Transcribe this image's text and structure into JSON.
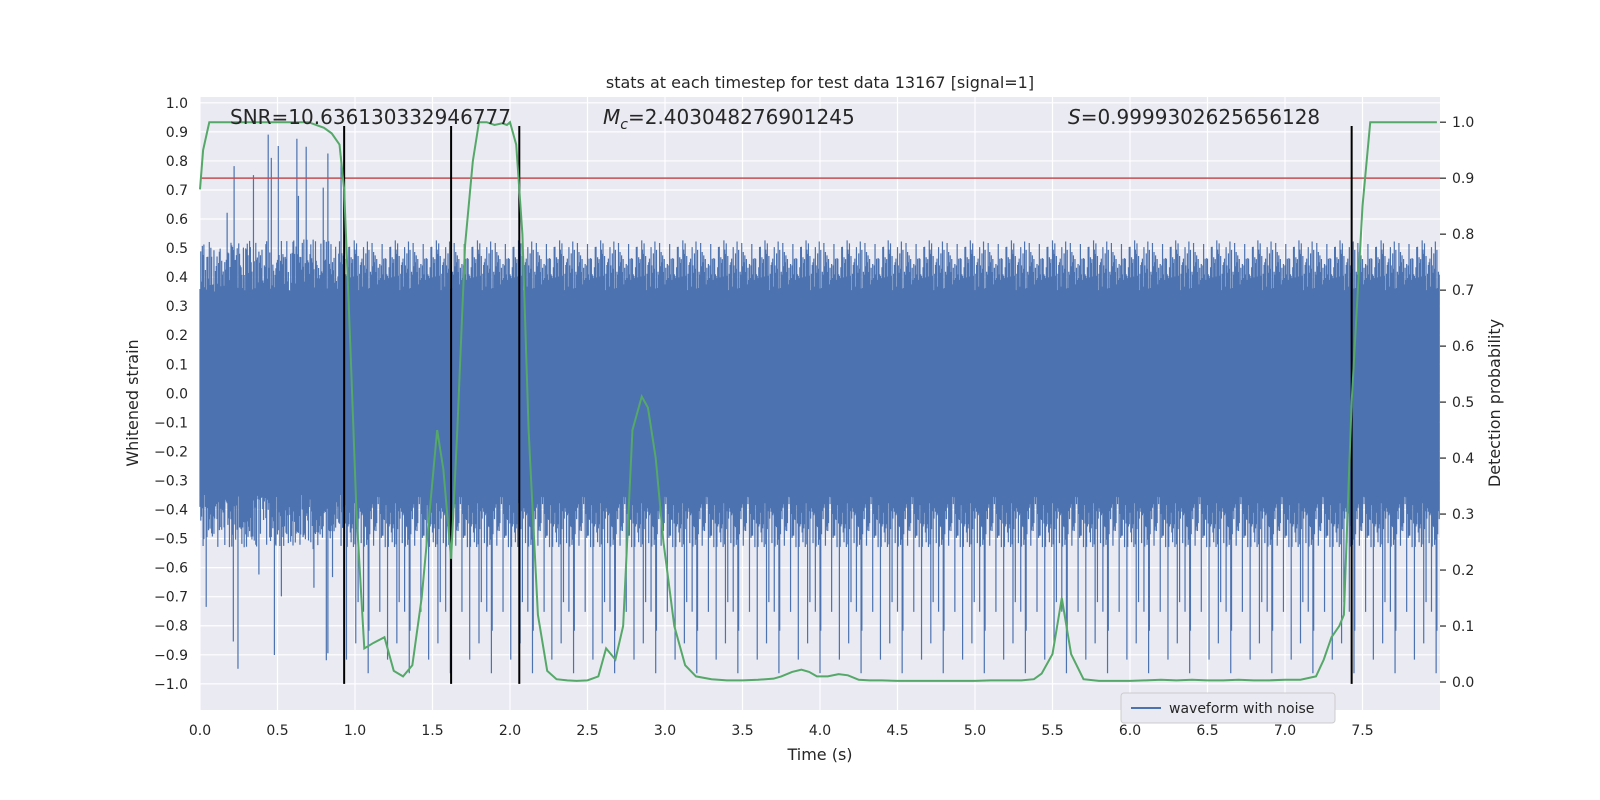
{
  "chart_data": {
    "type": "line",
    "title": "stats at each timestep for test data 13167 [signal=1]",
    "xlabel": "Time (s)",
    "ylabel": "Whitened strain",
    "y2label": "Detection probability",
    "xlim": [
      0.0,
      8.0
    ],
    "ylim": [
      -1.09,
      1.02
    ],
    "y2lim": [
      -0.05,
      1.045
    ],
    "xticks": [
      0.0,
      0.5,
      1.0,
      1.5,
      2.0,
      2.5,
      3.0,
      3.5,
      4.0,
      4.5,
      5.0,
      5.5,
      6.0,
      6.5,
      7.0,
      7.5
    ],
    "xtick_labels": [
      "0.0",
      "0.5",
      "1.0",
      "1.5",
      "2.0",
      "2.5",
      "3.0",
      "3.5",
      "4.0",
      "4.5",
      "5.0",
      "5.5",
      "6.0",
      "6.5",
      "7.0",
      "7.5"
    ],
    "yticks": [
      1.0,
      0.9,
      0.8,
      0.7,
      0.6,
      0.5,
      0.4,
      0.3,
      0.2,
      0.1,
      0.0,
      -0.1,
      -0.2,
      -0.3,
      -0.4,
      -0.5,
      -0.6,
      -0.7,
      -0.8,
      -0.9,
      -1.0
    ],
    "ytick_labels": [
      "1.0",
      "0.9",
      "0.8",
      "0.7",
      "0.6",
      "0.5",
      "0.4",
      "0.3",
      "0.2",
      "0.1",
      "0.0",
      "−0.1",
      "−0.2",
      "−0.3",
      "−0.4",
      "−0.5",
      "−0.6",
      "−0.7",
      "−0.8",
      "−0.9",
      "−1.0"
    ],
    "y2ticks": [
      1.0,
      0.9,
      0.8,
      0.7,
      0.6,
      0.5,
      0.4,
      0.3,
      0.2,
      0.1,
      0.0
    ],
    "y2tick_labels": [
      "1.0",
      "0.9",
      "0.8",
      "0.7",
      "0.6",
      "0.5",
      "0.4",
      "0.3",
      "0.2",
      "0.1",
      "0.0"
    ],
    "annotations": {
      "snr": "SNR=10.636130332946777",
      "mc_symbol": "M",
      "mc_sub": "c",
      "mc_value": "=2.403048276901245",
      "s_symbol": "S",
      "s_value": "=0.9999302625656128"
    },
    "legend": {
      "label": "waveform with noise",
      "position": "lower right"
    },
    "threshold": {
      "axis": "right",
      "value": 0.9,
      "color": "#c44e52"
    },
    "vlines": [
      {
        "x": 0.93,
        "ymin": -1.0,
        "ymax": 0.92
      },
      {
        "x": 1.62,
        "ymin": -1.0,
        "ymax": 0.92
      },
      {
        "x": 2.06,
        "ymin": -1.0,
        "ymax": 0.92
      },
      {
        "x": 7.43,
        "ymin": -1.0,
        "ymax": 0.92
      }
    ],
    "waveform": {
      "name": "waveform with noise",
      "color": "#4c72b0",
      "duration_s": 8.0,
      "samples": 1600,
      "typical_max": 0.35,
      "typical_min": -0.35,
      "peak_max": 0.92,
      "peak_min": -1.0
    },
    "detection_probability": {
      "name": "Detection probability",
      "color": "#55a868",
      "x": [
        0.0,
        0.02,
        0.06,
        0.12,
        0.2,
        0.3,
        0.4,
        0.5,
        0.6,
        0.7,
        0.8,
        0.85,
        0.9,
        0.93,
        0.97,
        1.01,
        1.06,
        1.12,
        1.19,
        1.25,
        1.31,
        1.37,
        1.43,
        1.49,
        1.53,
        1.57,
        1.62,
        1.66,
        1.71,
        1.76,
        1.8,
        1.85,
        1.9,
        1.95,
        1.98,
        2.0,
        2.04,
        2.08,
        2.12,
        2.18,
        2.24,
        2.3,
        2.37,
        2.43,
        2.5,
        2.57,
        2.62,
        2.68,
        2.73,
        2.79,
        2.85,
        2.89,
        2.94,
        2.99,
        3.06,
        3.13,
        3.2,
        3.3,
        3.4,
        3.5,
        3.6,
        3.7,
        3.75,
        3.82,
        3.88,
        3.93,
        3.98,
        4.05,
        4.12,
        4.18,
        4.25,
        4.32,
        4.4,
        4.5,
        4.6,
        4.7,
        4.8,
        4.9,
        5.0,
        5.1,
        5.2,
        5.3,
        5.38,
        5.43,
        5.5,
        5.56,
        5.62,
        5.7,
        5.8,
        5.9,
        6.0,
        6.1,
        6.2,
        6.3,
        6.4,
        6.5,
        6.6,
        6.7,
        6.8,
        6.9,
        7.0,
        7.1,
        7.2,
        7.25,
        7.3,
        7.35,
        7.38,
        7.41,
        7.43,
        7.46,
        7.5,
        7.55,
        7.6,
        7.7,
        7.8,
        7.9,
        7.98
      ],
      "y": [
        0.88,
        0.95,
        1.0,
        1.0,
        1.0,
        1.0,
        1.0,
        1.0,
        1.0,
        1.0,
        0.99,
        0.98,
        0.96,
        0.88,
        0.6,
        0.3,
        0.06,
        0.07,
        0.08,
        0.02,
        0.01,
        0.03,
        0.15,
        0.33,
        0.45,
        0.38,
        0.22,
        0.45,
        0.78,
        0.93,
        1.0,
        1.0,
        0.995,
        0.998,
        0.995,
        1.0,
        0.96,
        0.8,
        0.45,
        0.12,
        0.02,
        0.005,
        0.003,
        0.002,
        0.003,
        0.01,
        0.06,
        0.04,
        0.1,
        0.45,
        0.51,
        0.49,
        0.4,
        0.25,
        0.1,
        0.03,
        0.01,
        0.005,
        0.003,
        0.003,
        0.004,
        0.006,
        0.01,
        0.018,
        0.022,
        0.018,
        0.01,
        0.01,
        0.014,
        0.012,
        0.004,
        0.003,
        0.003,
        0.002,
        0.002,
        0.002,
        0.002,
        0.002,
        0.002,
        0.003,
        0.003,
        0.003,
        0.005,
        0.015,
        0.05,
        0.15,
        0.05,
        0.005,
        0.002,
        0.002,
        0.002,
        0.003,
        0.004,
        0.003,
        0.004,
        0.003,
        0.003,
        0.004,
        0.003,
        0.003,
        0.004,
        0.004,
        0.01,
        0.04,
        0.08,
        0.1,
        0.12,
        0.35,
        0.5,
        0.65,
        0.85,
        1.0,
        1.0,
        1.0,
        1.0,
        1.0,
        1.0
      ]
    }
  }
}
